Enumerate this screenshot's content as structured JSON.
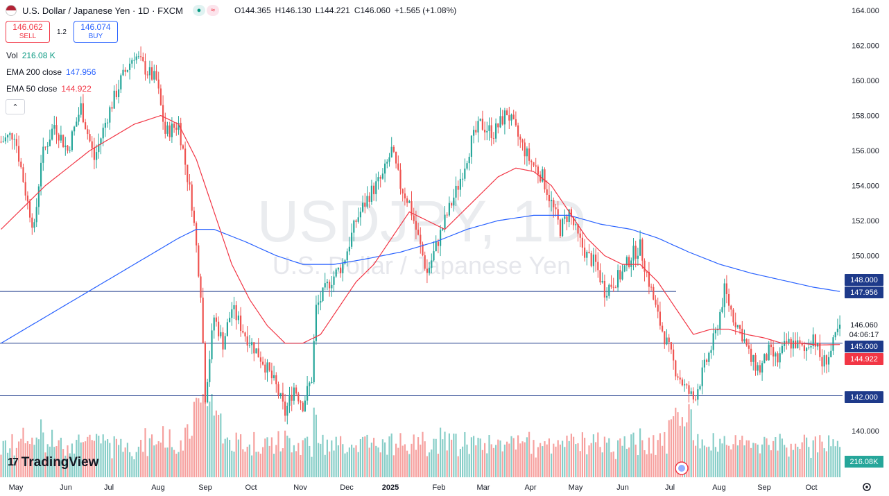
{
  "header": {
    "symbol_title": "U.S. Dollar / Japanese Yen · 1D · FXCM",
    "open_label": "O",
    "open": "144.365",
    "high_label": "H",
    "high": "146.130",
    "low_label": "L",
    "low": "144.221",
    "close_label": "C",
    "close": "146.060",
    "change": "+1.565 (+1.08%)"
  },
  "trade": {
    "sell_price": "146.062",
    "sell_label": "SELL",
    "spread": "1.2",
    "buy_price": "146.074",
    "buy_label": "BUY"
  },
  "legend": {
    "vol_label": "Vol",
    "vol_value": "216.08 K",
    "ema200_label": "EMA 200 close",
    "ema200_value": "147.956",
    "ema50_label": "EMA 50 close",
    "ema50_value": "144.922"
  },
  "watermark": {
    "symbol": "USDJPY, 1D",
    "name": "U.S. Dollar / Japanese Yen"
  },
  "branding": {
    "logo_text": "TradingView"
  },
  "icons": {
    "collapse": "chevron-up-icon",
    "settings": "gear-icon",
    "flag": "us-flag-icon"
  },
  "colors": {
    "up": "#26a69a",
    "down": "#ef5350",
    "ema200": "#2962ff",
    "ema50": "#f23645",
    "hline": "#1e3a8a"
  },
  "chart_data": {
    "type": "candlestick",
    "price_axis": {
      "ylim": [
        138.5,
        164.0
      ],
      "ticks": [
        "164.000",
        "162.000",
        "160.000",
        "158.000",
        "156.000",
        "154.000",
        "152.000",
        "150.000",
        "148.000",
        "146.000",
        "144.000",
        "142.000",
        "140.000"
      ]
    },
    "time_axis": {
      "labels": [
        "May",
        "Jun",
        "Jul",
        "Aug",
        "Sep",
        "Oct",
        "Nov",
        "Dec",
        "2025",
        "Feb",
        "Mar",
        "Apr",
        "May",
        "Jun",
        "Jul",
        "Aug",
        "Sep",
        "Oct"
      ]
    },
    "horizontal_lines": [
      {
        "price": 147.956,
        "label": "147.956"
      },
      {
        "price": 145.0,
        "label": "145.000"
      },
      {
        "price": 142.0,
        "label": "142.000"
      }
    ],
    "price_labels": [
      {
        "price": 148.0,
        "label": "148.000",
        "style": "blue"
      },
      {
        "price": 147.956,
        "label": "147.956",
        "style": "blue"
      },
      {
        "price": 146.06,
        "label": "146.060",
        "style": "plain"
      },
      {
        "price": 146.06,
        "label": "04:06:17",
        "style": "plain-sub"
      },
      {
        "price": 145.0,
        "label": "145.000",
        "style": "blue"
      },
      {
        "price": 144.922,
        "label": "144.922",
        "style": "red"
      },
      {
        "price": 142.0,
        "label": "142.000",
        "style": "blue"
      }
    ],
    "volume_label": "216.08K",
    "price_path": [
      [
        0,
        156.5
      ],
      [
        6,
        157.0
      ],
      [
        12,
        153.0
      ],
      [
        15,
        151.5
      ],
      [
        18,
        155.5
      ],
      [
        24,
        157.5
      ],
      [
        30,
        156.0
      ],
      [
        36,
        158.5
      ],
      [
        42,
        155.5
      ],
      [
        48,
        158.0
      ],
      [
        54,
        160.0
      ],
      [
        60,
        161.5
      ],
      [
        66,
        160.5
      ],
      [
        70,
        160.0
      ],
      [
        74,
        157.0
      ],
      [
        80,
        157.5
      ],
      [
        86,
        153.0
      ],
      [
        90,
        148.0
      ],
      [
        92,
        142.0
      ],
      [
        96,
        146.5
      ],
      [
        100,
        145.0
      ],
      [
        104,
        147.0
      ],
      [
        110,
        145.5
      ],
      [
        118,
        144.0
      ],
      [
        124,
        142.5
      ],
      [
        128,
        141.0
      ],
      [
        132,
        142.5
      ],
      [
        136,
        141.5
      ],
      [
        140,
        143.0
      ],
      [
        142,
        147.0
      ],
      [
        148,
        148.5
      ],
      [
        154,
        149.5
      ],
      [
        160,
        152.0
      ],
      [
        166,
        153.5
      ],
      [
        172,
        154.5
      ],
      [
        176,
        156.0
      ],
      [
        180,
        154.0
      ],
      [
        184,
        153.0
      ],
      [
        188,
        151.0
      ],
      [
        192,
        149.0
      ],
      [
        196,
        150.5
      ],
      [
        200,
        152.0
      ],
      [
        206,
        154.0
      ],
      [
        212,
        156.5
      ],
      [
        216,
        157.5
      ],
      [
        222,
        157.0
      ],
      [
        228,
        158.2
      ],
      [
        234,
        156.5
      ],
      [
        238,
        155.5
      ],
      [
        244,
        154.5
      ],
      [
        248,
        153.0
      ],
      [
        252,
        151.5
      ],
      [
        256,
        152.5
      ],
      [
        260,
        151.0
      ],
      [
        264,
        150.0
      ],
      [
        268,
        149.5
      ],
      [
        272,
        148.0
      ],
      [
        276,
        148.5
      ],
      [
        280,
        149.0
      ],
      [
        284,
        150.0
      ],
      [
        288,
        150.5
      ],
      [
        292,
        148.5
      ],
      [
        296,
        146.5
      ],
      [
        300,
        145.0
      ],
      [
        304,
        143.5
      ],
      [
        308,
        142.5
      ],
      [
        312,
        141.8
      ],
      [
        314,
        142.5
      ],
      [
        318,
        144.0
      ],
      [
        322,
        145.5
      ],
      [
        326,
        148.0
      ],
      [
        330,
        146.5
      ],
      [
        334,
        145.5
      ],
      [
        338,
        144.0
      ],
      [
        342,
        143.5
      ],
      [
        346,
        144.5
      ],
      [
        350,
        144.0
      ],
      [
        354,
        145.0
      ],
      [
        358,
        145.0
      ],
      [
        362,
        144.5
      ],
      [
        366,
        145.5
      ],
      [
        370,
        143.8
      ],
      [
        374,
        144.5
      ],
      [
        378,
        146.06
      ]
    ],
    "ema50_path": [
      [
        0,
        151.5
      ],
      [
        20,
        154.0
      ],
      [
        40,
        156.0
      ],
      [
        60,
        157.5
      ],
      [
        72,
        158.0
      ],
      [
        80,
        157.5
      ],
      [
        88,
        155.5
      ],
      [
        96,
        152.5
      ],
      [
        104,
        149.5
      ],
      [
        112,
        147.5
      ],
      [
        120,
        146.0
      ],
      [
        128,
        145.0
      ],
      [
        136,
        145.0
      ],
      [
        144,
        145.5
      ],
      [
        152,
        147.0
      ],
      [
        160,
        148.5
      ],
      [
        168,
        149.5
      ],
      [
        176,
        151.0
      ],
      [
        184,
        152.5
      ],
      [
        192,
        152.0
      ],
      [
        200,
        151.5
      ],
      [
        208,
        152.5
      ],
      [
        216,
        153.5
      ],
      [
        224,
        154.5
      ],
      [
        232,
        155.0
      ],
      [
        240,
        154.8
      ],
      [
        248,
        154.0
      ],
      [
        256,
        152.5
      ],
      [
        264,
        151.0
      ],
      [
        272,
        150.0
      ],
      [
        280,
        149.5
      ],
      [
        288,
        149.5
      ],
      [
        296,
        148.5
      ],
      [
        304,
        147.0
      ],
      [
        312,
        145.5
      ],
      [
        320,
        145.8
      ],
      [
        328,
        145.8
      ],
      [
        336,
        145.5
      ],
      [
        344,
        145.3
      ],
      [
        352,
        145.0
      ],
      [
        360,
        145.0
      ],
      [
        368,
        144.9
      ],
      [
        378,
        144.922
      ]
    ],
    "ema200_path": [
      [
        0,
        145.0
      ],
      [
        20,
        146.5
      ],
      [
        40,
        148.0
      ],
      [
        60,
        149.5
      ],
      [
        80,
        151.0
      ],
      [
        88,
        151.5
      ],
      [
        96,
        151.5
      ],
      [
        110,
        150.8
      ],
      [
        124,
        150.0
      ],
      [
        136,
        149.5
      ],
      [
        150,
        149.5
      ],
      [
        164,
        149.8
      ],
      [
        180,
        150.2
      ],
      [
        196,
        150.8
      ],
      [
        210,
        151.5
      ],
      [
        224,
        152.0
      ],
      [
        240,
        152.3
      ],
      [
        256,
        152.3
      ],
      [
        270,
        151.8
      ],
      [
        284,
        151.5
      ],
      [
        296,
        151.0
      ],
      [
        310,
        150.2
      ],
      [
        324,
        149.5
      ],
      [
        338,
        149.0
      ],
      [
        352,
        148.6
      ],
      [
        366,
        148.2
      ],
      [
        378,
        147.956
      ]
    ]
  }
}
